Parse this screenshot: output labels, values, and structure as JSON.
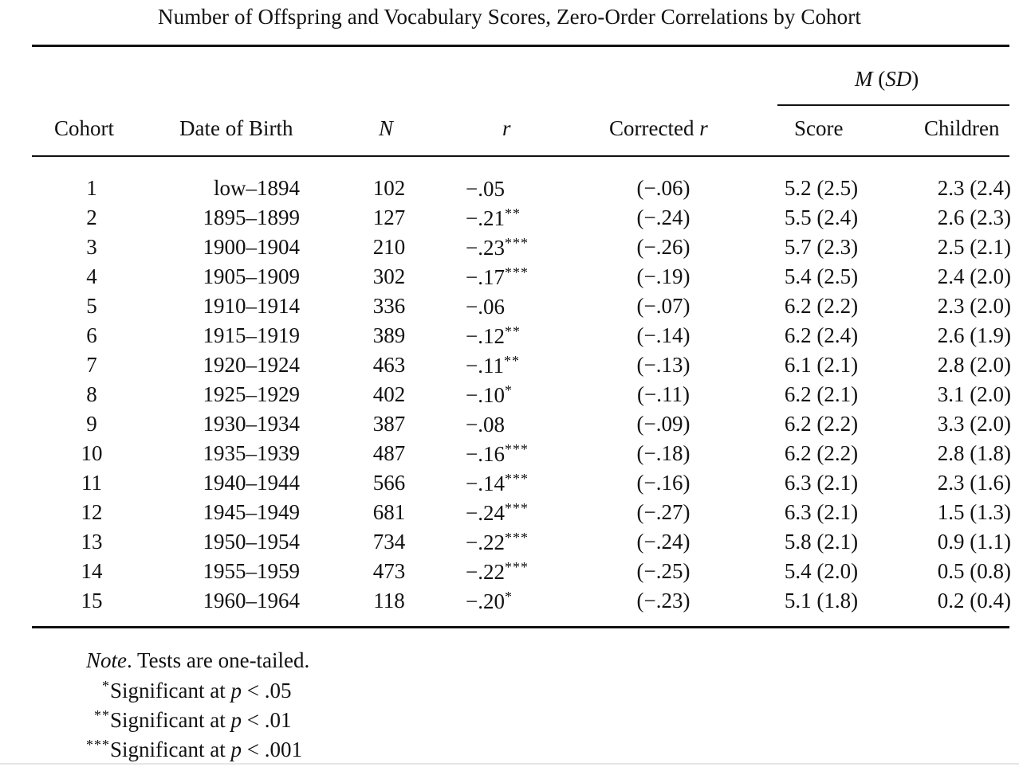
{
  "title": "Number of Offspring and Vocabulary Scores, Zero-Order Correlations by Cohort",
  "headers": {
    "cohort": "Cohort",
    "date_of_birth": "Date of Birth",
    "n": "N",
    "r": "r",
    "corrected_prefix": "Corrected ",
    "corrected_r": "r",
    "m": "M",
    "sd": "SD",
    "score": "Score",
    "children": "Children"
  },
  "rows": [
    {
      "cohort": "1",
      "date": "low–1894",
      "n": "102",
      "r": "−.05",
      "stars": "",
      "corrected": "(−.06)",
      "score": "5.2 (2.5)",
      "children": "2.3 (2.4)"
    },
    {
      "cohort": "2",
      "date": "1895–1899",
      "n": "127",
      "r": "−.21",
      "stars": "**",
      "corrected": "(−.24)",
      "score": "5.5 (2.4)",
      "children": "2.6 (2.3)"
    },
    {
      "cohort": "3",
      "date": "1900–1904",
      "n": "210",
      "r": "−.23",
      "stars": "***",
      "corrected": "(−.26)",
      "score": "5.7 (2.3)",
      "children": "2.5 (2.1)"
    },
    {
      "cohort": "4",
      "date": "1905–1909",
      "n": "302",
      "r": "−.17",
      "stars": "***",
      "corrected": "(−.19)",
      "score": "5.4 (2.5)",
      "children": "2.4 (2.0)"
    },
    {
      "cohort": "5",
      "date": "1910–1914",
      "n": "336",
      "r": "−.06",
      "stars": "",
      "corrected": "(−.07)",
      "score": "6.2 (2.2)",
      "children": "2.3 (2.0)"
    },
    {
      "cohort": "6",
      "date": "1915–1919",
      "n": "389",
      "r": "−.12",
      "stars": "**",
      "corrected": "(−.14)",
      "score": "6.2 (2.4)",
      "children": "2.6 (1.9)"
    },
    {
      "cohort": "7",
      "date": "1920–1924",
      "n": "463",
      "r": "−.11",
      "stars": "**",
      "corrected": "(−.13)",
      "score": "6.1 (2.1)",
      "children": "2.8 (2.0)"
    },
    {
      "cohort": "8",
      "date": "1925–1929",
      "n": "402",
      "r": "−.10",
      "stars": "*",
      "corrected": "(−.11)",
      "score": "6.2 (2.1)",
      "children": "3.1 (2.0)"
    },
    {
      "cohort": "9",
      "date": "1930–1934",
      "n": "387",
      "r": "−.08",
      "stars": "",
      "corrected": "(−.09)",
      "score": "6.2 (2.2)",
      "children": "3.3 (2.0)"
    },
    {
      "cohort": "10",
      "date": "1935–1939",
      "n": "487",
      "r": "−.16",
      "stars": "***",
      "corrected": "(−.18)",
      "score": "6.2 (2.2)",
      "children": "2.8 (1.8)"
    },
    {
      "cohort": "11",
      "date": "1940–1944",
      "n": "566",
      "r": "−.14",
      "stars": "***",
      "corrected": "(−.16)",
      "score": "6.3 (2.1)",
      "children": "2.3 (1.6)"
    },
    {
      "cohort": "12",
      "date": "1945–1949",
      "n": "681",
      "r": "−.24",
      "stars": "***",
      "corrected": "(−.27)",
      "score": "6.3 (2.1)",
      "children": "1.5 (1.3)"
    },
    {
      "cohort": "13",
      "date": "1950–1954",
      "n": "734",
      "r": "−.22",
      "stars": "***",
      "corrected": "(−.24)",
      "score": "5.8 (2.1)",
      "children": "0.9 (1.1)"
    },
    {
      "cohort": "14",
      "date": "1955–1959",
      "n": "473",
      "r": "−.22",
      "stars": "***",
      "corrected": "(−.25)",
      "score": "5.4 (2.0)",
      "children": "0.5 (0.8)"
    },
    {
      "cohort": "15",
      "date": "1960–1964",
      "n": "118",
      "r": "−.20",
      "stars": "*",
      "corrected": "(−.23)",
      "score": "5.1 (1.8)",
      "children": "0.2 (0.4)"
    }
  ],
  "note": {
    "label": "Note",
    "text": ". Tests are one-tailed.",
    "sig1_stars": "*",
    "sig1_text": "Significant at ",
    "sig1_p": "p",
    "sig1_value": " < .05",
    "sig2_stars": "**",
    "sig2_text": "Significant at ",
    "sig2_p": "p",
    "sig2_value": " < .01",
    "sig3_stars": "***",
    "sig3_text": "Significant at ",
    "sig3_p": "p",
    "sig3_value": " < .001"
  }
}
